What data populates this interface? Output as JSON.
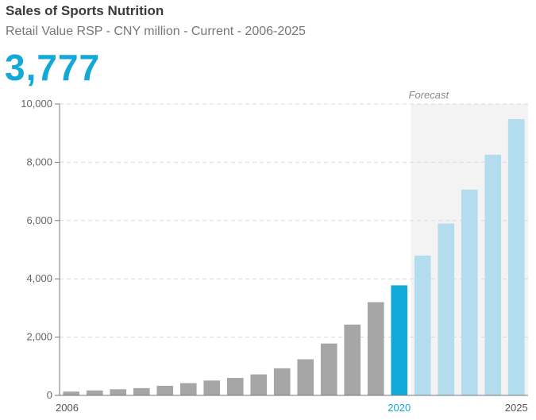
{
  "header": {
    "title": "Sales of Sports Nutrition",
    "subtitle": "Retail Value RSP - CNY million - Current - 2006-2025",
    "headline_value": "3,777"
  },
  "chart_data": {
    "type": "bar",
    "title": "Sales of Sports Nutrition",
    "subtitle": "Retail Value RSP - CNY million - Current - 2006-2025",
    "x": [
      2006,
      2007,
      2008,
      2009,
      2010,
      2011,
      2012,
      2013,
      2014,
      2015,
      2016,
      2017,
      2018,
      2019,
      2020,
      2021,
      2022,
      2023,
      2024,
      2025
    ],
    "values": [
      130,
      170,
      210,
      250,
      330,
      420,
      510,
      600,
      720,
      930,
      1240,
      1780,
      2430,
      3200,
      3777,
      4800,
      5900,
      7060,
      8260,
      9480
    ],
    "x_tick_labels": [
      {
        "label": "2006",
        "year": 2006
      },
      {
        "label": "2020",
        "year": 2020
      },
      {
        "label": "2025",
        "year": 2025
      }
    ],
    "y_ticks": [
      {
        "value": 0,
        "label": "0"
      },
      {
        "value": 2000,
        "label": "2,000"
      },
      {
        "value": 4000,
        "label": "4,000"
      },
      {
        "value": 6000,
        "label": "6,000"
      },
      {
        "value": 8000,
        "label": "8,000"
      },
      {
        "value": 10000,
        "label": "10,000"
      }
    ],
    "ylim": [
      0,
      10000
    ],
    "highlight_year": 2020,
    "forecast_start_year": 2021,
    "forecast_label": "Forecast",
    "grid": true,
    "colors": {
      "historic": "#a6a6a6",
      "highlight": "#12a9d8",
      "forecast": "#b3dcee",
      "forecast_band": "#f3f3f3",
      "grid": "#d9d9d9",
      "axis": "#777777"
    }
  }
}
